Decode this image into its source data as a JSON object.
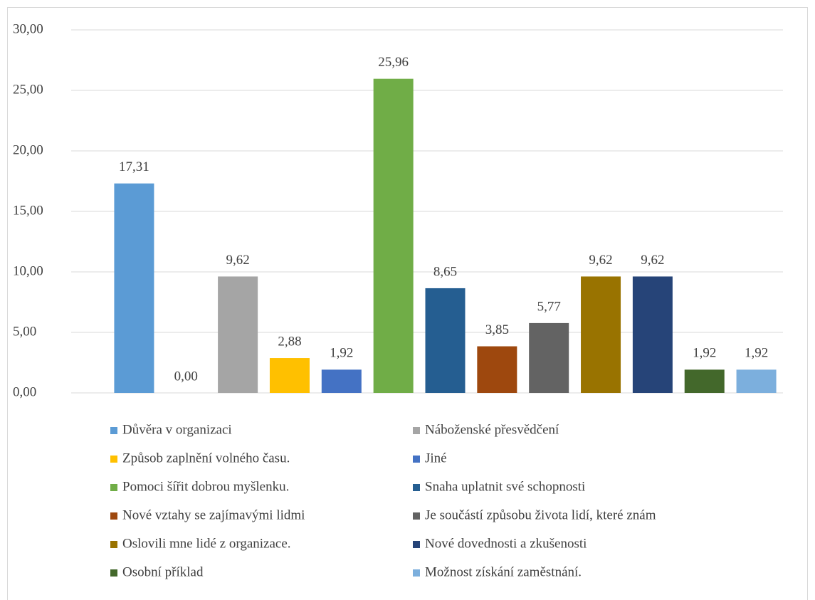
{
  "chart_data": {
    "type": "bar",
    "series": [
      {
        "name": "Důvěra v organizaci",
        "color": "#5b9bd5",
        "values": [
          17.31
        ],
        "value_labels": [
          "17,31"
        ]
      },
      {
        "name": null,
        "color": "#ed7d31",
        "values": [
          0.0
        ],
        "value_labels": [
          "0,00"
        ]
      },
      {
        "name": "Náboženské přesvědčení",
        "color": "#a5a5a5",
        "values": [
          9.62
        ],
        "value_labels": [
          "9,62"
        ]
      },
      {
        "name": "Způsob zaplnění volného času.",
        "color": "#ffc000",
        "values": [
          2.88
        ],
        "value_labels": [
          "2,88"
        ]
      },
      {
        "name": "Jiné",
        "color": "#4472c4",
        "values": [
          1.92
        ],
        "value_labels": [
          "1,92"
        ]
      },
      {
        "name": "Pomoci šířit dobrou myšlenku.",
        "color": "#70ad47",
        "values": [
          25.96
        ],
        "value_labels": [
          "25,96"
        ]
      },
      {
        "name": "Snaha uplatnit své schopnosti",
        "color": "#255e91",
        "values": [
          8.65
        ],
        "value_labels": [
          "8,65"
        ]
      },
      {
        "name": "Nové vztahy se zajímavými lidmi",
        "color": "#9e480e",
        "values": [
          3.85
        ],
        "value_labels": [
          "3,85"
        ]
      },
      {
        "name": "Je součástí způsobu života lidí, které znám",
        "color": "#636363",
        "values": [
          5.77
        ],
        "value_labels": [
          "5,77"
        ]
      },
      {
        "name": "Oslovili mne lidé z organizace.",
        "color": "#997300",
        "values": [
          9.62
        ],
        "value_labels": [
          "9,62"
        ]
      },
      {
        "name": "Nové dovednosti a zkušenosti",
        "color": "#264478",
        "values": [
          9.62
        ],
        "value_labels": [
          "9,62"
        ]
      },
      {
        "name": "Osobní příklad",
        "color": "#43682b",
        "values": [
          1.92
        ],
        "value_labels": [
          "1,92"
        ]
      },
      {
        "name": "Možnost získání zaměstnání.",
        "color": "#7cafdd",
        "values": [
          1.92
        ],
        "value_labels": [
          "1,92"
        ]
      }
    ],
    "ylim": [
      0,
      30
    ],
    "yticks": [
      {
        "value": 0,
        "label": "0,00"
      },
      {
        "value": 5,
        "label": "5,00"
      },
      {
        "value": 10,
        "label": "10,00"
      },
      {
        "value": 15,
        "label": "15,00"
      },
      {
        "value": 20,
        "label": "20,00"
      },
      {
        "value": 25,
        "label": "25,00"
      },
      {
        "value": 30,
        "label": "30,00"
      }
    ],
    "grid": true
  }
}
